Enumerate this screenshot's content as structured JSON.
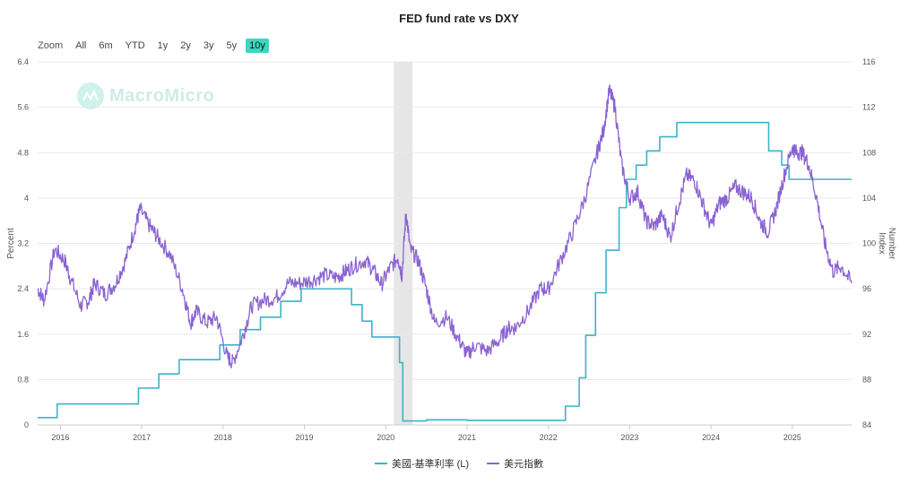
{
  "colors": {
    "fed": "#3bb3c9",
    "dxy": "#8a63d2",
    "recession": "#e6e6e6",
    "grid": "#e9e9e9",
    "zoom_active": "#3fd6c0"
  },
  "zoom": {
    "label": "Zoom",
    "options": [
      "All",
      "6m",
      "YTD",
      "1y",
      "2y",
      "3y",
      "5y",
      "10y"
    ],
    "active": "10y"
  },
  "watermark": {
    "text": "MacroMicro",
    "icon": "macromicro-logo-icon"
  },
  "chart_data": {
    "type": "line",
    "title": "FED fund rate vs DXY",
    "x_ticks": [
      "2016",
      "2017",
      "2018",
      "2019",
      "2020",
      "2021",
      "2022",
      "2023",
      "2024",
      "2025"
    ],
    "x_range": [
      2015.72,
      2025.73
    ],
    "y_left": {
      "label": "Percent",
      "range": [
        0,
        6.4
      ],
      "ticks": [
        "0",
        "0.8",
        "1.6",
        "2.4",
        "3.2",
        "4",
        "4.8",
        "5.6",
        "6.4"
      ]
    },
    "y_right": {
      "label": "Number\nIndex",
      "range": [
        84,
        116
      ],
      "ticks": [
        "84",
        "88",
        "92",
        "96",
        "100",
        "104",
        "108",
        "112",
        "116"
      ]
    },
    "grid": true,
    "legend_position": "bottom",
    "shaded_periods": [
      [
        2020.1,
        2020.33
      ]
    ],
    "series": [
      {
        "name": "美國-基準利率 (L)",
        "axis": "left",
        "step": true,
        "x": [
          2015.72,
          2015.96,
          2016.96,
          2017.21,
          2017.46,
          2017.96,
          2018.21,
          2018.46,
          2018.71,
          2018.96,
          2019.58,
          2019.71,
          2019.83,
          2020.17,
          2020.21,
          2020.5,
          2021.0,
          2021.5,
          2022.21,
          2022.38,
          2022.46,
          2022.58,
          2022.71,
          2022.87,
          2022.96,
          2023.08,
          2023.21,
          2023.37,
          2023.58,
          2024.71,
          2024.87,
          2024.96,
          2025.73
        ],
        "values": [
          0.13,
          0.37,
          0.65,
          0.9,
          1.15,
          1.41,
          1.68,
          1.9,
          2.18,
          2.4,
          2.12,
          1.83,
          1.55,
          1.1,
          0.07,
          0.09,
          0.08,
          0.08,
          0.33,
          0.83,
          1.58,
          2.33,
          3.08,
          3.83,
          4.33,
          4.58,
          4.83,
          5.08,
          5.33,
          4.83,
          4.58,
          4.33,
          4.33
        ]
      },
      {
        "name": "美元指數",
        "axis": "right",
        "x": [
          2015.72,
          2015.8,
          2015.93,
          2016.05,
          2016.12,
          2016.25,
          2016.35,
          2016.42,
          2016.55,
          2016.68,
          2016.8,
          2016.92,
          2016.98,
          2017.1,
          2017.2,
          2017.35,
          2017.5,
          2017.6,
          2017.67,
          2017.8,
          2017.92,
          2018.05,
          2018.12,
          2018.25,
          2018.35,
          2018.5,
          2018.65,
          2018.8,
          2018.95,
          2019.1,
          2019.25,
          2019.4,
          2019.5,
          2019.6,
          2019.75,
          2019.85,
          2019.95,
          2020.05,
          2020.15,
          2020.2,
          2020.25,
          2020.3,
          2020.4,
          2020.5,
          2020.6,
          2020.75,
          2020.9,
          2021.0,
          2021.1,
          2021.25,
          2021.4,
          2021.5,
          2021.6,
          2021.75,
          2021.9,
          2022.0,
          2022.15,
          2022.3,
          2022.45,
          2022.6,
          2022.68,
          2022.75,
          2022.82,
          2022.9,
          2023.0,
          2023.1,
          2023.2,
          2023.3,
          2023.4,
          2023.5,
          2023.6,
          2023.7,
          2023.8,
          2023.9,
          2024.0,
          2024.1,
          2024.2,
          2024.3,
          2024.4,
          2024.5,
          2024.6,
          2024.7,
          2024.8,
          2024.9,
          2025.0,
          2025.05,
          2025.12,
          2025.2,
          2025.3,
          2025.4,
          2025.5,
          2025.6,
          2025.73
        ],
        "values": [
          96.0,
          95.0,
          99.5,
          98.5,
          97.0,
          94.5,
          95.0,
          96.5,
          95.5,
          96.5,
          98.5,
          101.5,
          103.0,
          101.5,
          100.5,
          99.0,
          96.0,
          93.0,
          94.0,
          93.0,
          93.5,
          90.0,
          89.5,
          92.0,
          94.5,
          95.0,
          95.2,
          96.5,
          96.5,
          96.8,
          97.2,
          97.0,
          97.5,
          98.0,
          98.5,
          97.6,
          96.4,
          97.8,
          98.8,
          97.2,
          102.8,
          99.5,
          98.5,
          96.0,
          93.0,
          93.5,
          91.5,
          90.2,
          91.0,
          90.5,
          91.5,
          92.5,
          92.6,
          94.0,
          96.0,
          96.0,
          98.5,
          101.0,
          104.0,
          108.0,
          110.0,
          113.5,
          112.0,
          107.0,
          104.0,
          104.5,
          102.0,
          101.5,
          102.5,
          100.5,
          103.5,
          106.0,
          105.5,
          103.5,
          101.5,
          103.5,
          104.0,
          105.0,
          104.5,
          104.0,
          102.0,
          101.0,
          103.0,
          106.0,
          108.5,
          108.0,
          108.0,
          107.0,
          104.0,
          100.0,
          97.5,
          98.0,
          96.5
        ]
      }
    ]
  }
}
